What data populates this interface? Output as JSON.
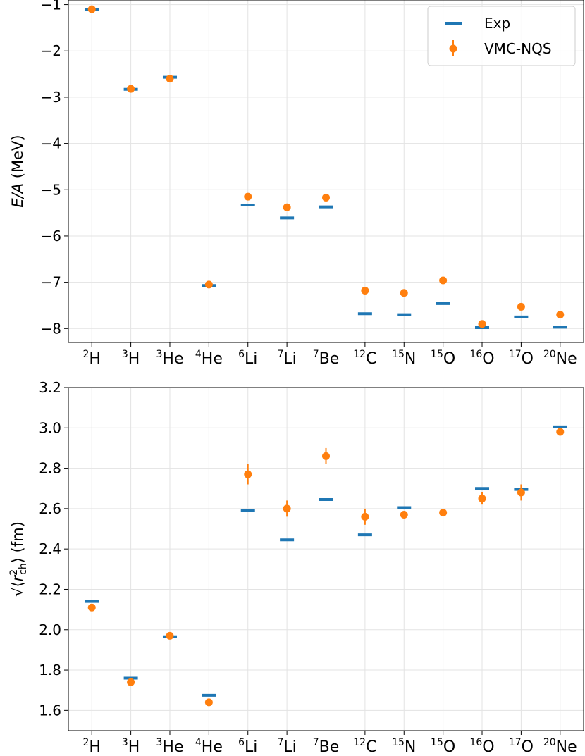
{
  "chart_data": [
    {
      "type": "scatter",
      "ylabel": "E/A (MeV)",
      "ylabel_var": "E/A",
      "ylabel_unit": " (MeV)",
      "ylim": [
        -8.3,
        -0.9
      ],
      "yticks": [
        -1,
        -2,
        -3,
        -4,
        -5,
        -6,
        -7,
        -8
      ],
      "ytick_labels": [
        "−1",
        "−2",
        "−3",
        "−4",
        "−5",
        "−6",
        "−7",
        "−8"
      ],
      "grid": true,
      "legend_position": "top-right",
      "categories": [
        {
          "mass": "2",
          "element": "H"
        },
        {
          "mass": "3",
          "element": "H"
        },
        {
          "mass": "3",
          "element": "He"
        },
        {
          "mass": "4",
          "element": "He"
        },
        {
          "mass": "6",
          "element": "Li"
        },
        {
          "mass": "7",
          "element": "Li"
        },
        {
          "mass": "7",
          "element": "Be"
        },
        {
          "mass": "12",
          "element": "C"
        },
        {
          "mass": "15",
          "element": "N"
        },
        {
          "mass": "15",
          "element": "O"
        },
        {
          "mass": "16",
          "element": "O"
        },
        {
          "mass": "17",
          "element": "O"
        },
        {
          "mass": "20",
          "element": "Ne"
        }
      ],
      "series": [
        {
          "name": "Exp",
          "marker": "hline",
          "color": "#1f77b4",
          "values": [
            -1.11,
            -2.83,
            -2.57,
            -7.07,
            -5.33,
            -5.61,
            -5.37,
            -7.68,
            -7.7,
            -7.46,
            -7.98,
            -7.75,
            -7.97
          ]
        },
        {
          "name": "VMC-NQS",
          "marker": "circle",
          "color": "#ff7f0e",
          "values": [
            -1.1,
            -2.82,
            -2.6,
            -7.05,
            -5.15,
            -5.38,
            -5.17,
            -7.18,
            -7.23,
            -6.96,
            -7.9,
            -7.53,
            -7.7
          ],
          "errors": [
            0.01,
            0.01,
            0.01,
            0.01,
            0.01,
            0.01,
            0.01,
            0.01,
            0.01,
            0.01,
            0.01,
            0.01,
            0.01
          ]
        }
      ]
    },
    {
      "type": "scatter",
      "ylabel": "√⟨r²ch⟩ (fm)",
      "ylabel_var": "r",
      "ylabel_sup": "2",
      "ylabel_sub": "ch",
      "ylabel_unit": " (fm)",
      "ylim": [
        1.5,
        3.2
      ],
      "yticks": [
        1.6,
        1.8,
        2.0,
        2.2,
        2.4,
        2.6,
        2.8,
        3.0,
        3.2
      ],
      "ytick_labels": [
        "1.6",
        "1.8",
        "2.0",
        "2.2",
        "2.4",
        "2.6",
        "2.8",
        "3.0",
        "3.2"
      ],
      "grid": true,
      "categories": [
        {
          "mass": "2",
          "element": "H"
        },
        {
          "mass": "3",
          "element": "H"
        },
        {
          "mass": "3",
          "element": "He"
        },
        {
          "mass": "4",
          "element": "He"
        },
        {
          "mass": "6",
          "element": "Li"
        },
        {
          "mass": "7",
          "element": "Li"
        },
        {
          "mass": "7",
          "element": "Be"
        },
        {
          "mass": "12",
          "element": "C"
        },
        {
          "mass": "15",
          "element": "N"
        },
        {
          "mass": "15",
          "element": "O"
        },
        {
          "mass": "16",
          "element": "O"
        },
        {
          "mass": "17",
          "element": "O"
        },
        {
          "mass": "20",
          "element": "Ne"
        }
      ],
      "series": [
        {
          "name": "Exp",
          "marker": "hline",
          "color": "#1f77b4",
          "values": [
            2.14,
            1.76,
            1.965,
            1.675,
            2.59,
            2.445,
            2.645,
            2.47,
            2.605,
            null,
            2.7,
            2.695,
            3.005
          ]
        },
        {
          "name": "VMC-NQS",
          "marker": "circle",
          "color": "#ff7f0e",
          "values": [
            2.11,
            1.74,
            1.97,
            1.64,
            2.77,
            2.6,
            2.86,
            2.56,
            2.57,
            2.58,
            2.65,
            2.68,
            2.98
          ],
          "errors": [
            0.005,
            0.005,
            0.005,
            0.005,
            0.05,
            0.04,
            0.04,
            0.04,
            0.01,
            0.01,
            0.03,
            0.04,
            0.01
          ]
        }
      ]
    }
  ]
}
